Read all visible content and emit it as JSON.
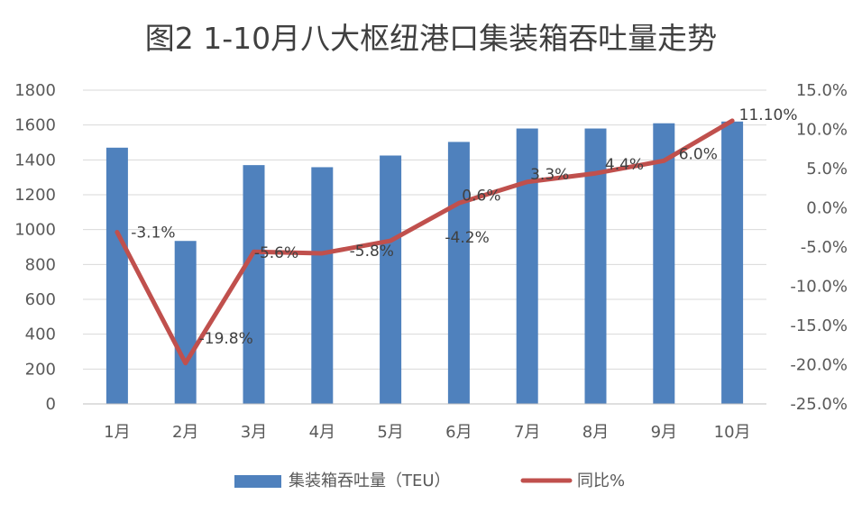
{
  "chart_data": {
    "type": "bar+line",
    "title": "图2  1-10月八大枢纽港口集装箱吞吐量走势",
    "categories": [
      "1月",
      "2月",
      "3月",
      "4月",
      "5月",
      "6月",
      "7月",
      "8月",
      "9月",
      "10月"
    ],
    "series": [
      {
        "name": "集装箱吞吐量（TEU）",
        "type": "bar",
        "axis": "left",
        "color": "#4f81bd",
        "values": [
          1470,
          935,
          1370,
          1358,
          1425,
          1503,
          1580,
          1580,
          1610,
          1620
        ]
      },
      {
        "name": "同比%",
        "type": "line",
        "axis": "right",
        "color": "#c0504d",
        "values": [
          -3.1,
          -19.8,
          -5.6,
          -5.8,
          -4.2,
          0.6,
          3.3,
          4.4,
          6.0,
          11.1
        ],
        "data_labels": [
          "-3.1%",
          "-19.8%",
          "-5.6%",
          "-5.8%",
          "-4.2%",
          "0.6%",
          "3.3%",
          "4.4%",
          "6.0%",
          "11.10%"
        ]
      }
    ],
    "y_left": {
      "range": [
        0,
        1800
      ],
      "ticks": [
        0,
        200,
        400,
        600,
        800,
        1000,
        1200,
        1400,
        1600,
        1800
      ],
      "tick_labels": [
        "0",
        "200",
        "400",
        "600",
        "800",
        "1000",
        "1200",
        "1400",
        "1600",
        "1800"
      ]
    },
    "y_right": {
      "range": [
        -25,
        15
      ],
      "ticks": [
        -25,
        -20,
        -15,
        -10,
        -5,
        0,
        5,
        10,
        15
      ],
      "tick_labels": [
        "-25.0%",
        "-20.0%",
        "-15.0%",
        "-10.0%",
        "-5.0%",
        "0.0%",
        "5.0%",
        "10.0%",
        "15.0%"
      ]
    },
    "grid": true,
    "legend_position": "bottom"
  }
}
